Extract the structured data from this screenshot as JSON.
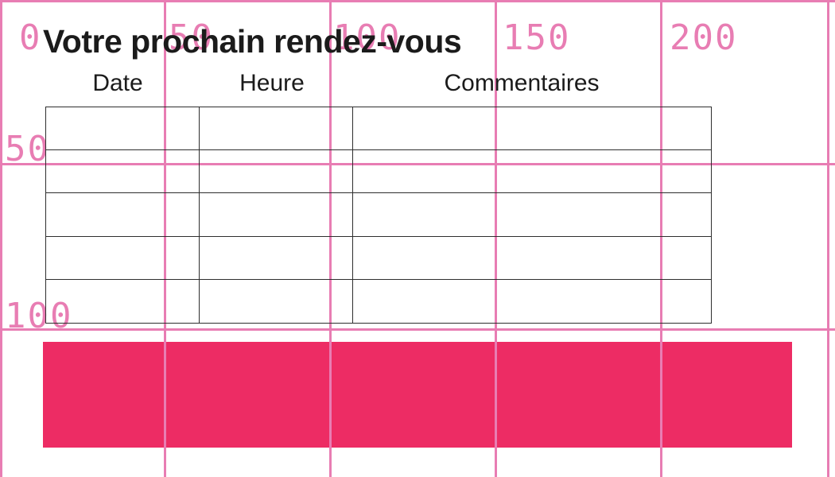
{
  "document": {
    "title": "Votre prochain rendez-vous"
  },
  "table": {
    "headers": [
      "Date",
      "Heure",
      "Commentaires"
    ],
    "rows": [
      [
        "",
        "",
        ""
      ],
      [
        "",
        "",
        ""
      ],
      [
        "",
        "",
        ""
      ],
      [
        "",
        "",
        ""
      ],
      [
        "",
        "",
        ""
      ]
    ]
  },
  "grid_overlay": {
    "x_labels": [
      "0",
      "50",
      "100",
      "150",
      "200"
    ],
    "y_labels": [
      "50",
      "100"
    ]
  },
  "colors": {
    "grid-pink": "#E87DB3",
    "bar-pink": "#ED2C64",
    "text-black": "#1b1b1b",
    "table-line": "#2e2e2e"
  }
}
